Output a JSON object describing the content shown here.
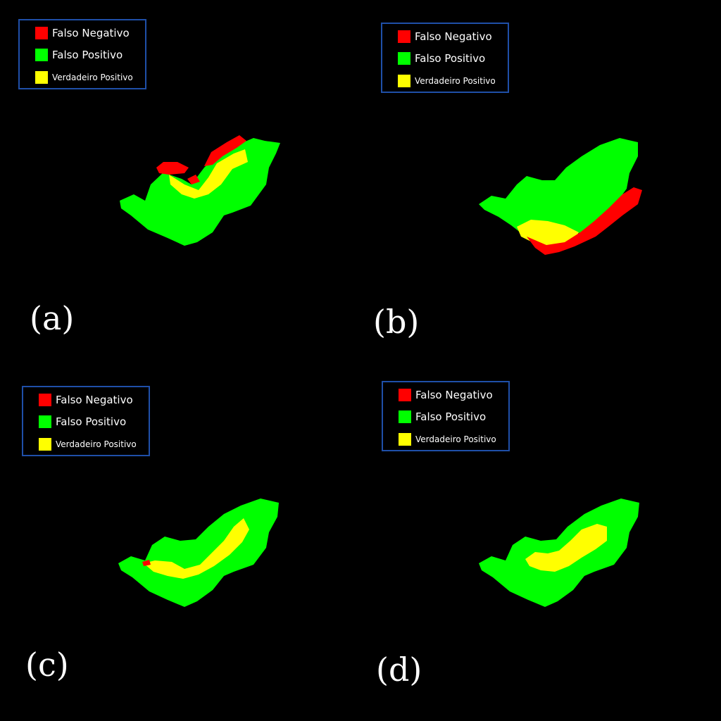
{
  "legend": {
    "false_negative": "Falso Negativo",
    "false_positive": "Falso Positivo",
    "true_positive": "Verdadeiro Positivo"
  },
  "colors": {
    "false_negative": "#ff0000",
    "false_positive": "#00ff00",
    "true_positive": "#ffff00",
    "legend_border": "#1f4fa8",
    "background": "#000000"
  },
  "panels": [
    {
      "id": "a",
      "label": "(a)"
    },
    {
      "id": "b",
      "label": "(b)"
    },
    {
      "id": "c",
      "label": "(c)"
    },
    {
      "id": "d",
      "label": "(d)"
    }
  ]
}
